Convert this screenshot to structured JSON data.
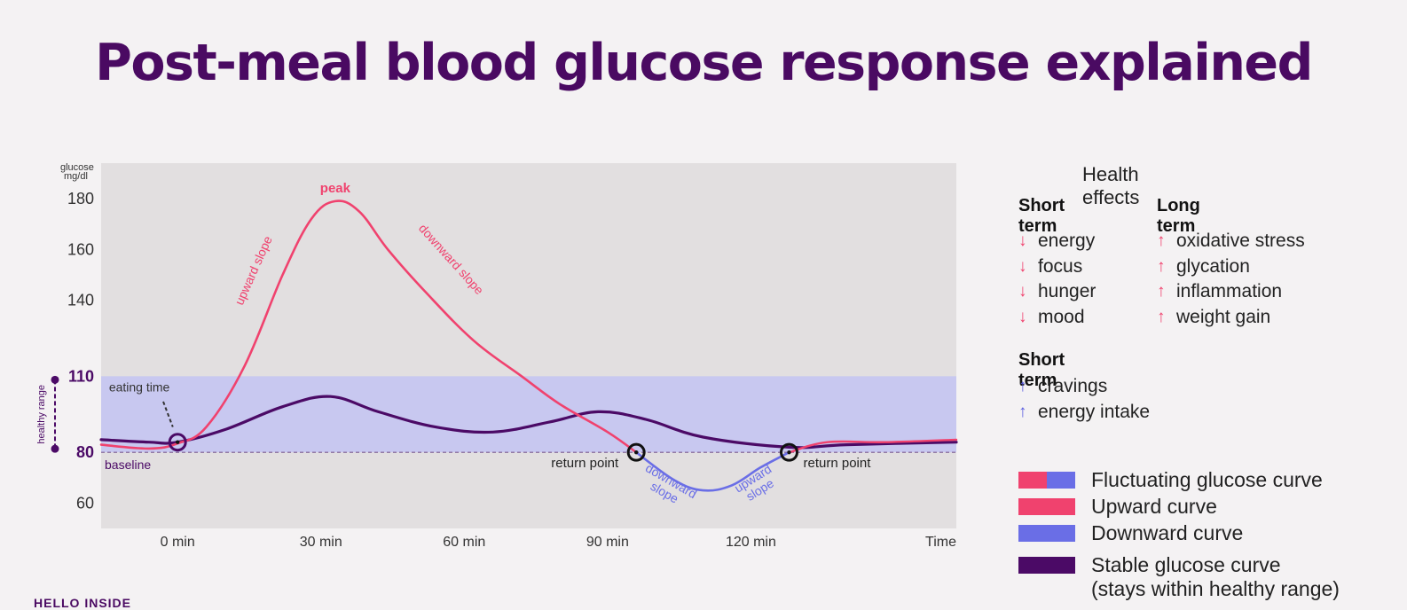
{
  "page": {
    "title": "Post-meal blood glucose response explained"
  },
  "chart_data": {
    "type": "line",
    "xlabel": "Time",
    "ylabel": "glucose mg/dl",
    "x_ticks": [
      {
        "label": "0 min",
        "value": 0
      },
      {
        "label": "30 min",
        "value": 30
      },
      {
        "label": "60 min",
        "value": 60
      },
      {
        "label": "90 min",
        "value": 90
      },
      {
        "label": "120 min",
        "value": 120
      }
    ],
    "y_ticks": [
      {
        "label": "180",
        "value": 180
      },
      {
        "label": "160",
        "value": 160
      },
      {
        "label": "140",
        "value": 140
      },
      {
        "label": "110",
        "value": 110
      },
      {
        "label": "80",
        "value": 80
      },
      {
        "label": "60",
        "value": 60
      }
    ],
    "xlim": [
      -16,
      163
    ],
    "ylim": [
      50,
      194
    ],
    "healthy_range": {
      "label": "healthy range",
      "min": 80,
      "max": 110
    },
    "baseline": {
      "label": "baseline",
      "value": 80
    },
    "series": [
      {
        "name": "Fluctuating glucose curve",
        "color": "#f0426e",
        "points": [
          [
            -16,
            83
          ],
          [
            -6,
            81.5
          ],
          [
            0,
            83.5
          ],
          [
            6,
            90
          ],
          [
            14,
            114
          ],
          [
            22,
            150
          ],
          [
            28,
            172
          ],
          [
            33,
            179
          ],
          [
            38,
            175
          ],
          [
            44,
            160
          ],
          [
            52,
            143
          ],
          [
            62,
            124
          ],
          [
            72,
            110
          ],
          [
            80,
            99
          ],
          [
            90,
            88
          ],
          [
            96,
            80
          ]
        ],
        "continuation_color": "#6a6ee6",
        "continuation_points": [
          [
            96,
            80
          ],
          [
            104,
            69
          ],
          [
            110,
            65
          ],
          [
            116,
            67
          ],
          [
            122,
            74
          ],
          [
            128,
            80
          ]
        ],
        "tail_points": [
          [
            128,
            80
          ],
          [
            136,
            84
          ],
          [
            148,
            84
          ],
          [
            163,
            85
          ]
        ]
      },
      {
        "name": "Stable glucose curve",
        "color": "#4b0a66",
        "points": [
          [
            -16,
            85
          ],
          [
            -6,
            84
          ],
          [
            0,
            84
          ],
          [
            10,
            89
          ],
          [
            22,
            98
          ],
          [
            32,
            102
          ],
          [
            42,
            96
          ],
          [
            54,
            90
          ],
          [
            66,
            88
          ],
          [
            78,
            92
          ],
          [
            88,
            96
          ],
          [
            98,
            93
          ],
          [
            110,
            86
          ],
          [
            128,
            82
          ],
          [
            140,
            83
          ],
          [
            163,
            84
          ]
        ]
      }
    ],
    "annotations": {
      "peak": "peak",
      "upward_slope": "upward slope",
      "downward_slope": "downward slope",
      "eating_time": "eating time",
      "return_point_left": "return point",
      "return_point_right": "return point",
      "downward_small": [
        "downward",
        "slope"
      ],
      "upward_small": [
        "upward",
        "slope"
      ]
    },
    "markers": [
      {
        "x": 0,
        "y": 84
      },
      {
        "x": 96,
        "y": 80
      },
      {
        "x": 128,
        "y": 80
      }
    ],
    "colors": {
      "plot_bg": "#e2dfe0",
      "healthy_band": "#c8c8f0",
      "upward": "#f0426e",
      "downward": "#6a6ee6",
      "stable": "#4b0a66"
    }
  },
  "health_effects": {
    "title": "Health effects",
    "short_term_heading": "Short term",
    "long_term_heading": "Long term",
    "short_term": [
      "energy",
      "focus",
      "hunger",
      "mood"
    ],
    "long_term": [
      "oxidative stress",
      "glycation",
      "inflammation",
      "weight gain"
    ],
    "short_term2_heading": "Short term",
    "short_term2": [
      "cravings",
      "energy intake"
    ],
    "down_arrow": "↓",
    "up_arrow": "↑"
  },
  "legend": {
    "fluctuating": "Fluctuating glucose curve",
    "upward": "Upward curve",
    "downward": "Downward curve",
    "stable_line1": "Stable glucose curve",
    "stable_line2": "(stays within healthy range)"
  },
  "footer": {
    "brand": "HELLO INSIDE"
  }
}
